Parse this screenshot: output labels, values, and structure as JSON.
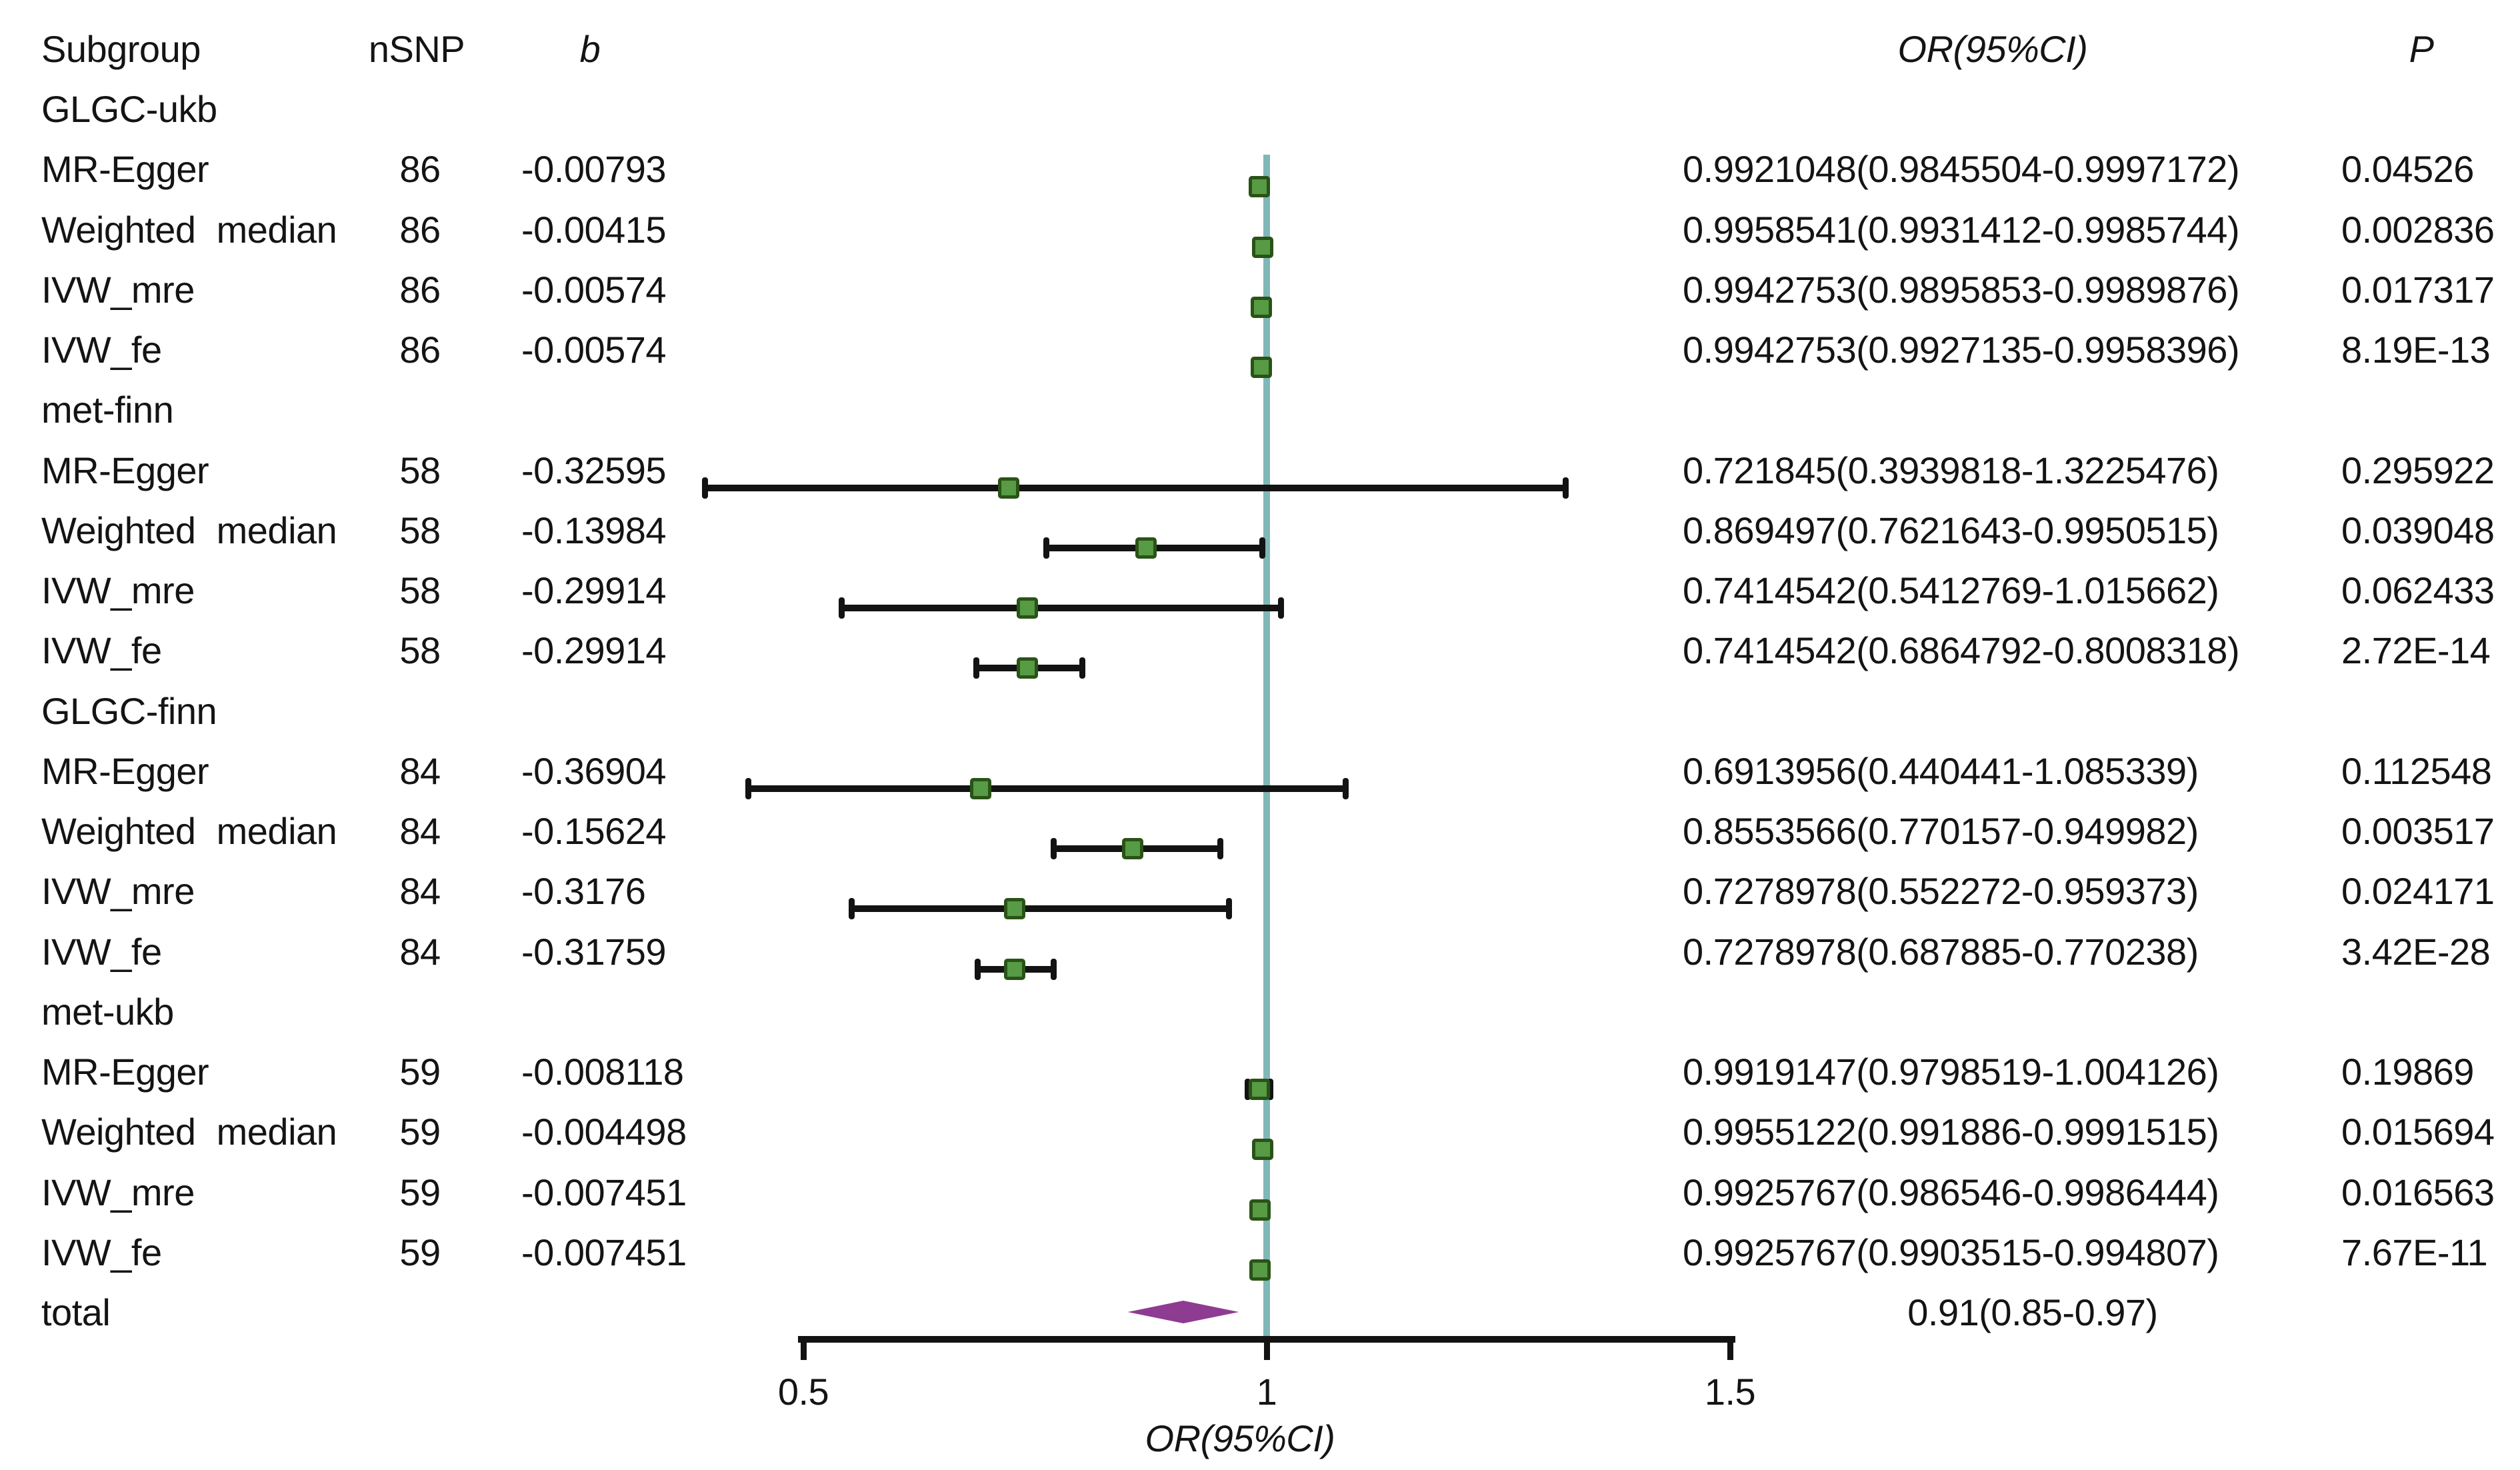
{
  "title": "forest plot of Mendelian randomization results",
  "colors": {
    "text": "#141414",
    "ci": "#131313",
    "marker_fill": "#579b44",
    "marker_border": "#2a5317",
    "reference_line": "#7fb8b6",
    "diamond": "#8e3b92",
    "background": "#ffffff"
  },
  "headers": {
    "subgroup": "Subgroup",
    "nsnp": "nSNP",
    "b": "b",
    "or_ci": "OR(95%CI)",
    "p": "P"
  },
  "axis": {
    "label": "OR(95%CI)",
    "reference_value": 1,
    "ticks": [
      {
        "label": "0.5",
        "value": 0.5
      },
      {
        "label": "1",
        "value": 1.0
      },
      {
        "label": "1.5",
        "value": 1.5
      }
    ]
  },
  "chart_data": {
    "type": "scatter",
    "subtype": "forest-plot",
    "xlabel": "OR(95%CI)",
    "xlim": [
      0.5,
      1.5
    ],
    "reference_line_x": 1,
    "legend": "none",
    "grid": false,
    "groups": [
      {
        "label": "GLGC-ukb",
        "methods": [
          {
            "label": "MR-Egger",
            "nsnp": "86",
            "b": "-0.00793",
            "or": 0.9921048,
            "lo": 0.9845504,
            "hi": 0.9997172,
            "or_text": "0.9921048(0.9845504-0.9997172)",
            "p": "0.04526"
          },
          {
            "label": "Weighted median",
            "nsnp": "86",
            "b": "-0.00415",
            "or": 0.9958541,
            "lo": 0.9931412,
            "hi": 0.9985744,
            "or_text": "0.9958541(0.9931412-0.9985744)",
            "p": "0.002836"
          },
          {
            "label": "IVW_mre",
            "nsnp": "86",
            "b": "-0.00574",
            "or": 0.9942753,
            "lo": 0.9895853,
            "hi": 0.9989876,
            "or_text": "0.9942753(0.9895853-0.9989876)",
            "p": "0.017317"
          },
          {
            "label": "IVW_fe",
            "nsnp": "86",
            "b": "-0.00574",
            "or": 0.9942753,
            "lo": 0.9927135,
            "hi": 0.9958396,
            "or_text": "0.9942753(0.9927135-0.9958396)",
            "p": "8.19E-13"
          }
        ]
      },
      {
        "label": "met-finn",
        "methods": [
          {
            "label": "MR-Egger",
            "nsnp": "58",
            "b": "-0.32595",
            "or": 0.721845,
            "lo": 0.3939818,
            "hi": 1.3225476,
            "or_text": "0.721845(0.3939818-1.3225476)",
            "p": "0.295922"
          },
          {
            "label": "Weighted median",
            "nsnp": "58",
            "b": "-0.13984",
            "or": 0.869497,
            "lo": 0.7621643,
            "hi": 0.9950515,
            "or_text": "0.869497(0.7621643-0.9950515)",
            "p": "0.039048"
          },
          {
            "label": "IVW_mre",
            "nsnp": "58",
            "b": "-0.29914",
            "or": 0.7414542,
            "lo": 0.5412769,
            "hi": 1.015662,
            "or_text": "0.7414542(0.5412769-1.015662)",
            "p": "0.062433"
          },
          {
            "label": "IVW_fe",
            "nsnp": "58",
            "b": "-0.29914",
            "or": 0.7414542,
            "lo": 0.6864792,
            "hi": 0.8008318,
            "or_text": "0.7414542(0.6864792-0.8008318)",
            "p": "2.72E-14"
          }
        ]
      },
      {
        "label": "GLGC-finn",
        "methods": [
          {
            "label": "MR-Egger",
            "nsnp": "84",
            "b": "-0.36904",
            "or": 0.6913956,
            "lo": 0.440441,
            "hi": 1.085339,
            "or_text": "0.6913956(0.440441-1.085339)",
            "p": "0.112548"
          },
          {
            "label": "Weighted median",
            "nsnp": "84",
            "b": "-0.15624",
            "or": 0.8553566,
            "lo": 0.770157,
            "hi": 0.949982,
            "or_text": "0.8553566(0.770157-0.949982)",
            "p": "0.003517"
          },
          {
            "label": "IVW_mre",
            "nsnp": "84",
            "b": "-0.3176",
            "or": 0.7278978,
            "lo": 0.552272,
            "hi": 0.959373,
            "or_text": "0.7278978(0.552272-0.959373)",
            "p": "0.024171"
          },
          {
            "label": "IVW_fe",
            "nsnp": "84",
            "b": "-0.31759",
            "or": 0.7278978,
            "lo": 0.687885,
            "hi": 0.770238,
            "or_text": "0.7278978(0.687885-0.770238)",
            "p": "3.42E-28"
          }
        ]
      },
      {
        "label": "met-ukb",
        "methods": [
          {
            "label": "MR-Egger",
            "nsnp": "59",
            "b": "-0.008118",
            "or": 0.9919147,
            "lo": 0.9798519,
            "hi": 1.004126,
            "or_text": "0.9919147(0.9798519-1.004126)",
            "p": "0.19869"
          },
          {
            "label": "Weighted median",
            "nsnp": "59",
            "b": "-0.004498",
            "or": 0.9955122,
            "lo": 0.991886,
            "hi": 0.9991515,
            "or_text": "0.9955122(0.991886-0.9991515)",
            "p": "0.015694"
          },
          {
            "label": "IVW_mre",
            "nsnp": "59",
            "b": "-0.007451",
            "or": 0.9925767,
            "lo": 0.986546,
            "hi": 0.9986444,
            "or_text": "0.9925767(0.986546-0.9986444)",
            "p": "0.016563"
          },
          {
            "label": "IVW_fe",
            "nsnp": "59",
            "b": "-0.007451",
            "or": 0.9925767,
            "lo": 0.9903515,
            "hi": 0.994807,
            "or_text": "0.9925767(0.9903515-0.994807)",
            "p": "7.67E-11"
          }
        ]
      }
    ],
    "total": {
      "label": "total",
      "or": 0.91,
      "lo": 0.85,
      "hi": 0.97,
      "or_text": "0.91(0.85-0.97)"
    }
  }
}
